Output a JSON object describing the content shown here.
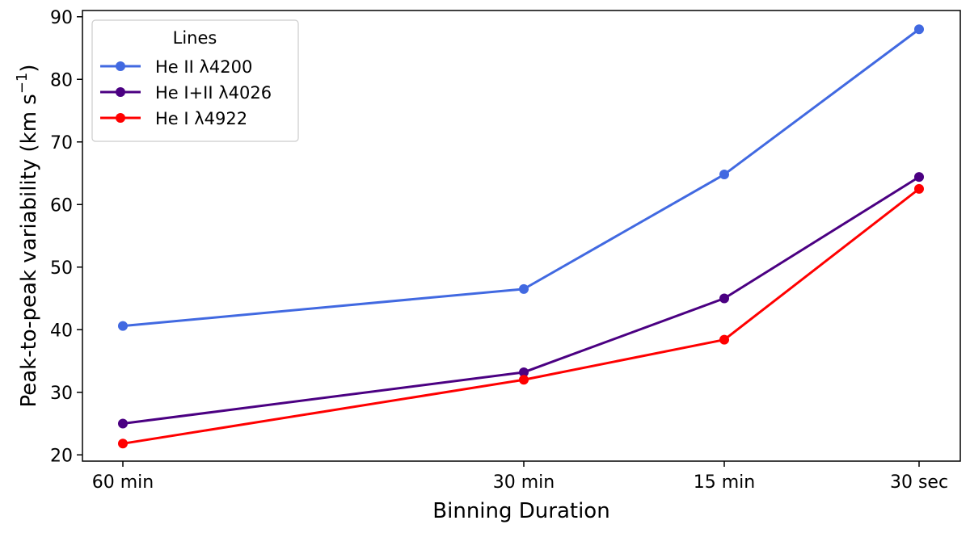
{
  "chart_data": {
    "type": "line",
    "title": "",
    "xlabel": "Binning Duration",
    "ylabel": "Peak-to-peak variability (km s",
    "ylabel_unit_suffix": ")",
    "ylabel_superscript": "−1",
    "categories": [
      "60 min",
      "30 min",
      "15 min",
      "30 sec"
    ],
    "x": [
      60,
      30,
      15,
      0.5
    ],
    "ylim": [
      19,
      91
    ],
    "yticks": [
      20,
      30,
      40,
      50,
      60,
      70,
      80,
      90
    ],
    "grid": false,
    "legend": {
      "title": "Lines",
      "placement": "top-left"
    },
    "series": [
      {
        "name": "He II λ4200",
        "color": "#4169e1",
        "values": [
          40.6,
          46.5,
          64.8,
          88.0
        ]
      },
      {
        "name": "He I+II λ4026",
        "color": "#4b0082",
        "values": [
          25.0,
          33.2,
          45.0,
          64.4
        ]
      },
      {
        "name": "He I λ4922",
        "color": "#ff0000",
        "values": [
          21.8,
          32.0,
          38.4,
          62.5
        ]
      }
    ]
  }
}
